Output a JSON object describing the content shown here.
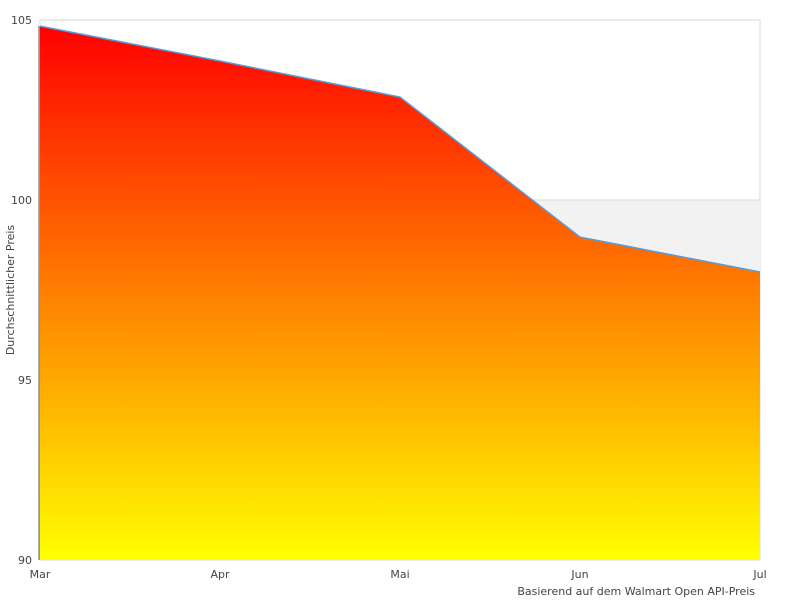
{
  "chart_data": {
    "type": "area",
    "categories": [
      "Mar",
      "Apr",
      "Mai",
      "Jun",
      "Jul"
    ],
    "values": [
      104.83,
      103.86,
      102.86,
      98.97,
      98.0
    ],
    "ylabel": "Durchschnittlicher Preis",
    "xlabel": "Basierend auf dem Walmart Open API-Preis",
    "ylim": [
      90,
      105
    ],
    "yticks": [
      90,
      95,
      100,
      105
    ],
    "plot_band": [
      95,
      100
    ],
    "grid": true,
    "colors": {
      "fill_top": "#ff0000",
      "fill_bottom": "#ffff00",
      "line": "#5b9bd5",
      "band": "#f2f2f2",
      "frame": "#d9d9d9"
    }
  }
}
